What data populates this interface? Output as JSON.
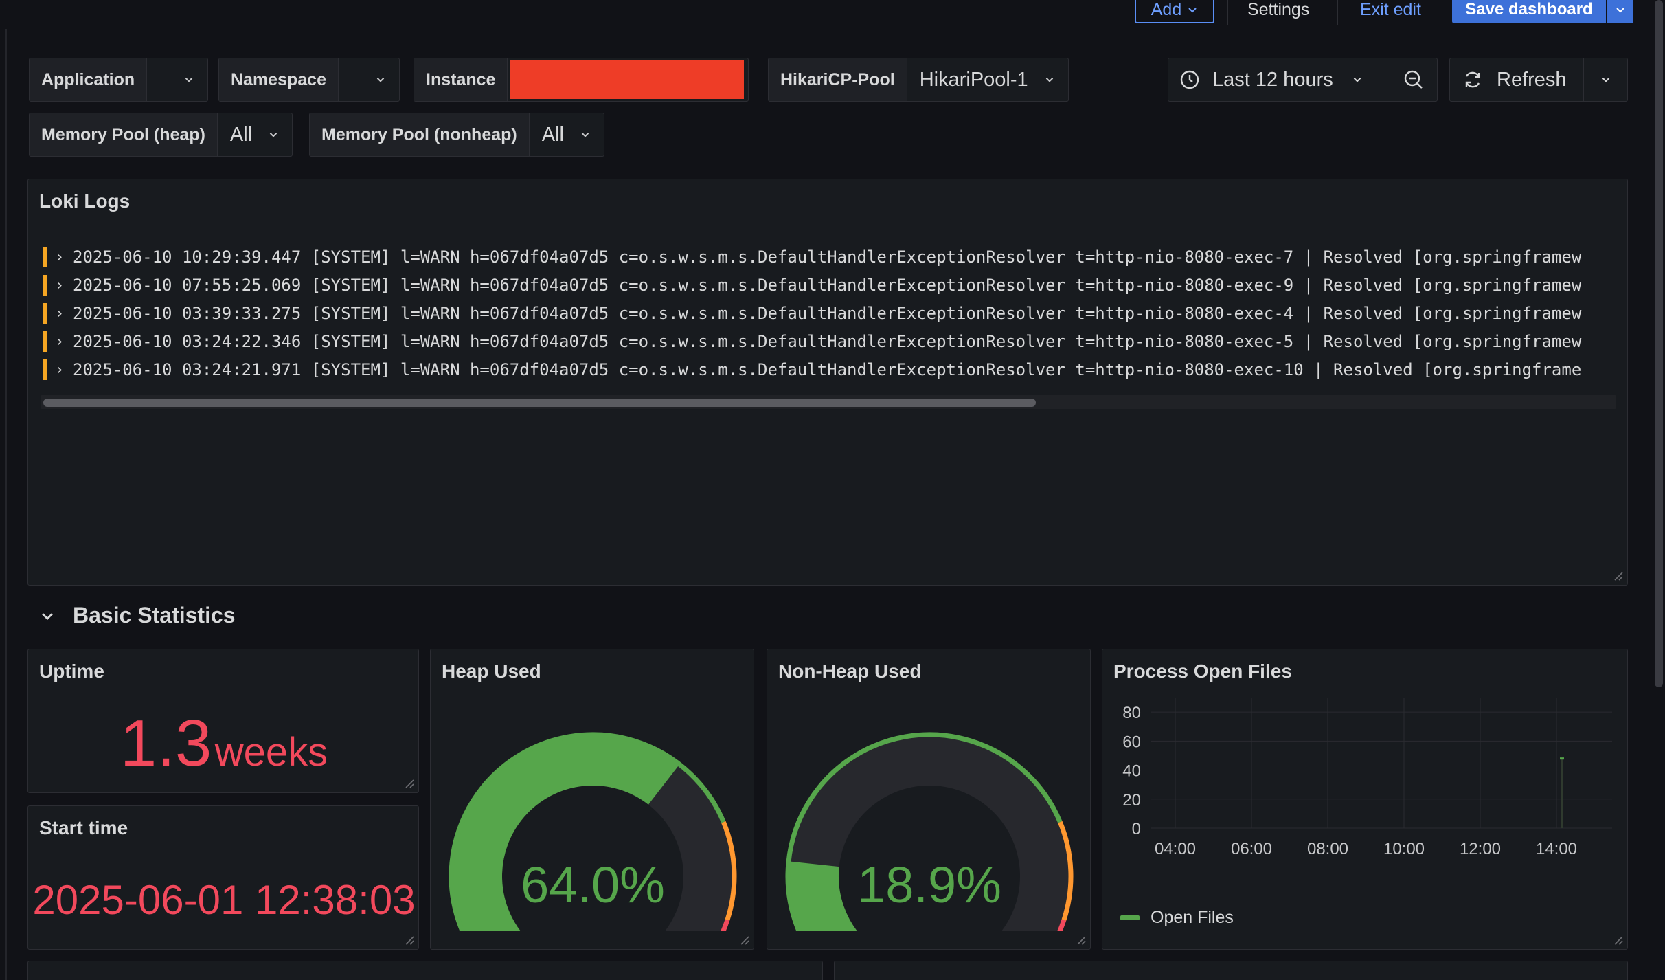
{
  "toolbar": {
    "add_label": "Add",
    "settings_label": "Settings",
    "exit_label": "Exit edit",
    "save_label": "Save dashboard"
  },
  "variables": {
    "application": {
      "label": "Application",
      "value": ""
    },
    "namespace": {
      "label": "Namespace",
      "value": ""
    },
    "instance": {
      "label": "Instance",
      "value": ""
    },
    "hikari": {
      "label": "HikariCP-Pool",
      "value": "HikariPool-1"
    },
    "heap": {
      "label": "Memory Pool (heap)",
      "value": "All"
    },
    "nonheap": {
      "label": "Memory Pool (nonheap)",
      "value": "All"
    }
  },
  "time": {
    "range_label": "Last 12 hours",
    "refresh_label": "Refresh"
  },
  "logs": {
    "title": "Loki Logs",
    "lines": [
      "2025-06-10 10:29:39.447 [SYSTEM] l=WARN h=067df04a07d5 c=o.s.w.s.m.s.DefaultHandlerExceptionResolver t=http-nio-8080-exec-7 | Resolved [org.springframew",
      "2025-06-10 07:55:25.069 [SYSTEM] l=WARN h=067df04a07d5 c=o.s.w.s.m.s.DefaultHandlerExceptionResolver t=http-nio-8080-exec-9 | Resolved [org.springframew",
      "2025-06-10 03:39:33.275 [SYSTEM] l=WARN h=067df04a07d5 c=o.s.w.s.m.s.DefaultHandlerExceptionResolver t=http-nio-8080-exec-4 | Resolved [org.springframew",
      "2025-06-10 03:24:22.346 [SYSTEM] l=WARN h=067df04a07d5 c=o.s.w.s.m.s.DefaultHandlerExceptionResolver t=http-nio-8080-exec-5 | Resolved [org.springframew",
      "2025-06-10 03:24:21.971 [SYSTEM] l=WARN h=067df04a07d5 c=o.s.w.s.m.s.DefaultHandlerExceptionResolver t=http-nio-8080-exec-10 | Resolved [org.springframe"
    ],
    "scroll_fraction": 0.63
  },
  "section": {
    "title": "Basic Statistics"
  },
  "uptime": {
    "title": "Uptime",
    "value": "1.3",
    "unit": "weeks"
  },
  "start_time": {
    "title": "Start time",
    "value": "2025-06-01 12:38:03"
  },
  "heap_used": {
    "title": "Heap Used",
    "value": "64.0%",
    "fraction": 0.64
  },
  "nonheap_used": {
    "title": "Non-Heap Used",
    "value": "18.9%",
    "fraction": 0.189
  },
  "open_files": {
    "title": "Process Open Files",
    "legend": "Open Files"
  },
  "colors": {
    "green": "#56a64b",
    "red": "#f2495c",
    "orange": "#ff9830",
    "accent": "#3d71d9"
  },
  "chart_data": {
    "type": "line",
    "title": "Process Open Files",
    "y_ticks": [
      "80",
      "60",
      "40",
      "20",
      "0"
    ],
    "x_ticks": [
      "04:00",
      "06:00",
      "08:00",
      "10:00",
      "12:00",
      "14:00"
    ],
    "ylim": [
      0,
      90
    ],
    "series": [
      {
        "name": "Open Files",
        "x": [
          "14:00"
        ],
        "values": [
          48
        ]
      }
    ]
  }
}
